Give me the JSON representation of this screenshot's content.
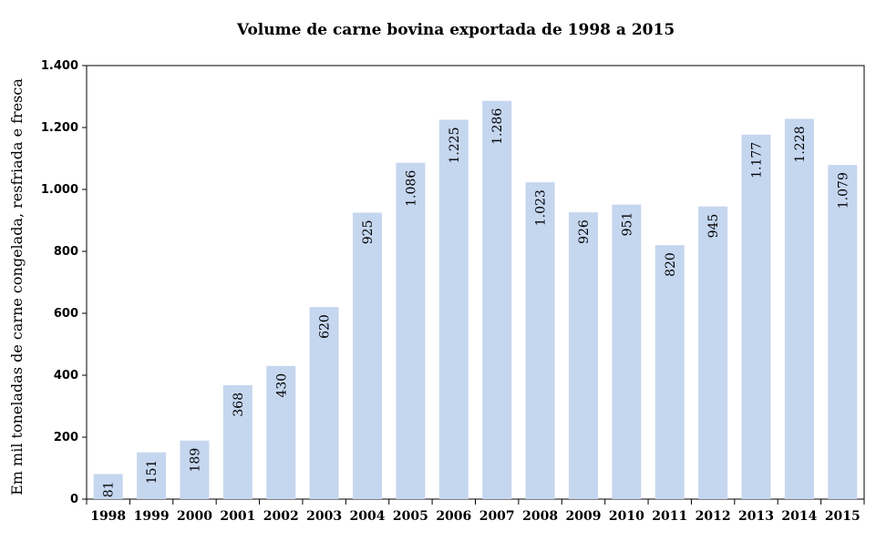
{
  "chart_data": {
    "type": "bar",
    "title": "Volume de carne bovina exportada de 1998 a 2015",
    "xlabel": "",
    "ylabel": "Em mil toneladas de carne congelada, resfriada e fresca",
    "ylim": [
      0,
      1400
    ],
    "yticks": [
      0,
      200,
      400,
      600,
      800,
      1000,
      1200,
      1400
    ],
    "ytick_labels": [
      "0",
      "200",
      "400",
      "600",
      "800",
      "1.000",
      "1.200",
      "1.400"
    ],
    "categories": [
      "1998",
      "1999",
      "2000",
      "2001",
      "2002",
      "2003",
      "2004",
      "2005",
      "2006",
      "2007",
      "2008",
      "2009",
      "2010",
      "2011",
      "2012",
      "2013",
      "2014",
      "2015"
    ],
    "values": [
      81,
      151,
      189,
      368,
      430,
      620,
      925,
      1086,
      1225,
      1286,
      1023,
      926,
      951,
      820,
      945,
      1177,
      1228,
      1079
    ],
    "data_labels": [
      "81",
      "151",
      "189",
      "368",
      "430",
      "620",
      "925",
      "1.086",
      "1.225",
      "1.286",
      "1.023",
      "926",
      "951",
      "820",
      "945",
      "1.177",
      "1.228",
      "1.079"
    ],
    "bar_color": "#c5d6ef",
    "grid": false,
    "legend": "none"
  }
}
